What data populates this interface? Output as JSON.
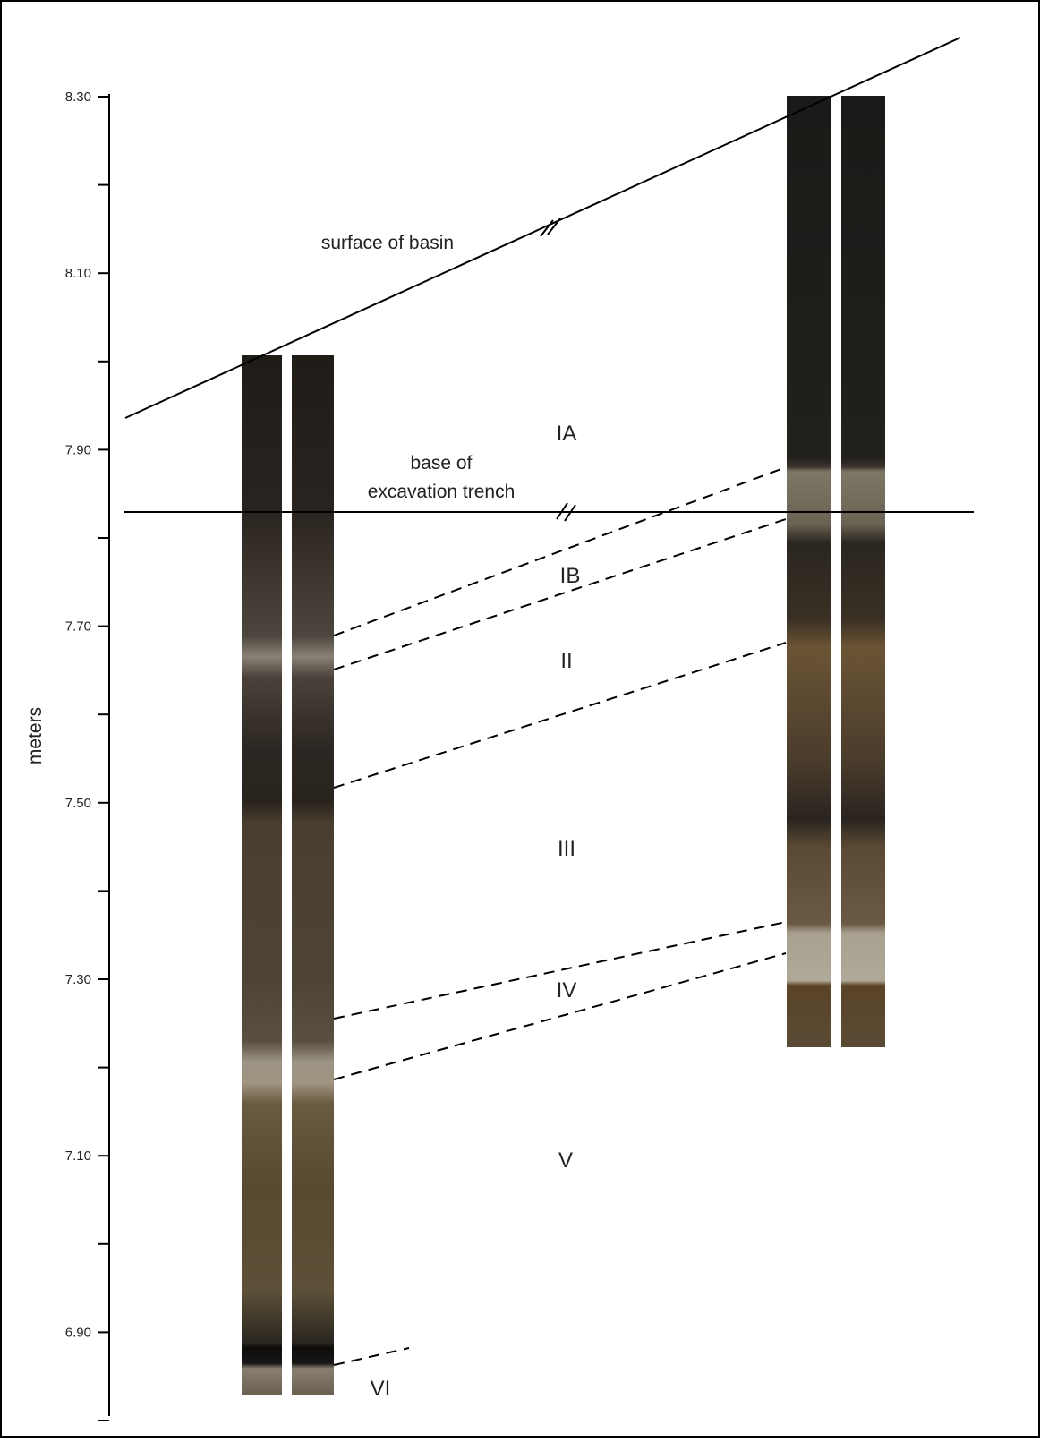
{
  "axis": {
    "label": "meters",
    "ticks": [
      "8.30",
      "8.10",
      "7.90",
      "7.70",
      "7.50",
      "7.30",
      "7.10",
      "6.90"
    ]
  },
  "annotations": {
    "surface": "surface of basin",
    "trench": [
      "base of",
      "excavation trench"
    ]
  },
  "units": [
    "IA",
    "IB",
    "II",
    "III",
    "IV",
    "V",
    "VI"
  ]
}
